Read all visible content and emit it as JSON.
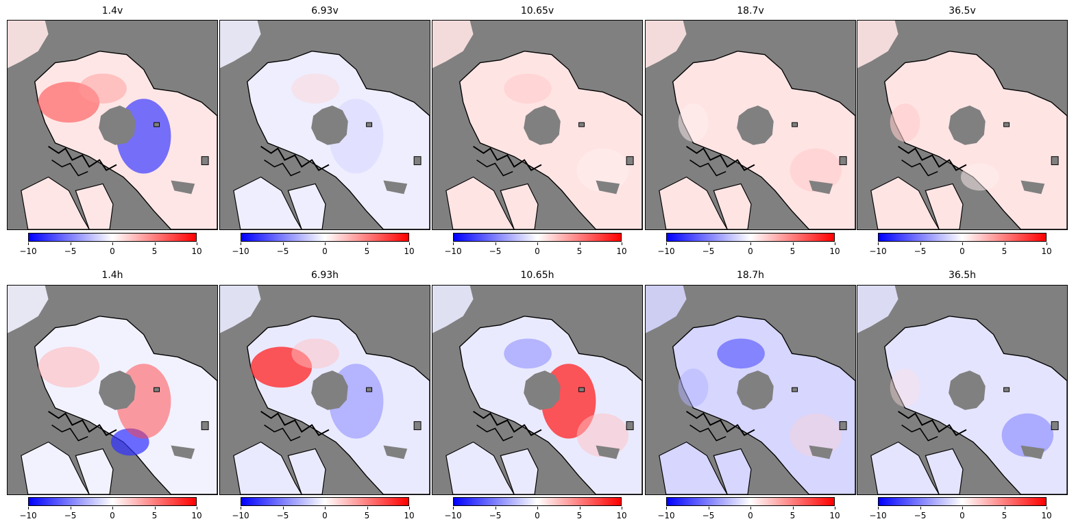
{
  "colors": {
    "land": "#808080",
    "coast": "#000000",
    "cmap_low": "#0000ff",
    "cmap_mid": "#ffffff",
    "cmap_high": "#ff0000"
  },
  "colorbar": {
    "ticks": [
      "−10",
      "−5",
      "0",
      "5",
      "10"
    ],
    "range": [
      -10,
      10
    ]
  },
  "rows": [
    {
      "panels": [
        {
          "title": "1.4v",
          "pattern": "strong-v"
        },
        {
          "title": "6.93v",
          "pattern": "weak-mixed"
        },
        {
          "title": "10.65v",
          "pattern": "weak-red"
        },
        {
          "title": "18.7v",
          "pattern": "weak-red"
        },
        {
          "title": "36.5v",
          "pattern": "weak-red"
        }
      ]
    },
    {
      "panels": [
        {
          "title": "1.4h",
          "pattern": "strong-h"
        },
        {
          "title": "6.93h",
          "pattern": "red-top"
        },
        {
          "title": "10.65h",
          "pattern": "red-top"
        },
        {
          "title": "18.7h",
          "pattern": "blue"
        },
        {
          "title": "36.5h",
          "pattern": "blue-light"
        }
      ]
    }
  ]
}
